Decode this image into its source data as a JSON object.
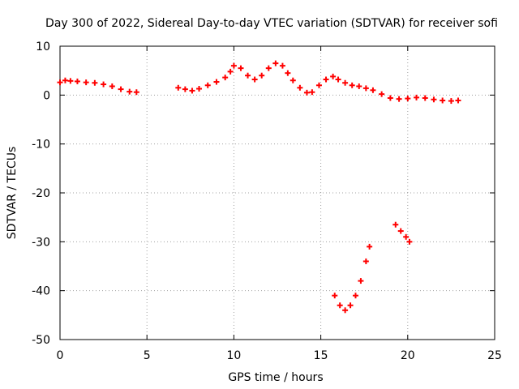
{
  "chart_data": {
    "type": "scatter",
    "title": "Day 300 of 2022, Sidereal Day-to-day VTEC variation (SDTVAR) for receiver sofi",
    "xlabel": "GPS time / hours",
    "ylabel": "SDTVAR / TECUs",
    "xlim": [
      0,
      25
    ],
    "ylim": [
      -50,
      10
    ],
    "xticks": [
      "0",
      "5",
      "10",
      "15",
      "20",
      "25"
    ],
    "yticks": [
      "-50",
      "-40",
      "-30",
      "-20",
      "-10",
      "0",
      "10"
    ],
    "grid": true,
    "marker": "plus",
    "color": "#ff0000",
    "series": [
      {
        "name": "SDTVAR",
        "x": [
          0.0,
          0.3,
          0.6,
          1.0,
          1.5,
          2.0,
          2.5,
          3.0,
          3.5,
          4.0,
          4.4,
          6.8,
          7.2,
          7.6,
          8.0,
          8.5,
          9.0,
          9.5,
          9.8,
          10.0,
          10.4,
          10.8,
          11.2,
          11.6,
          12.0,
          12.4,
          12.8,
          13.1,
          13.4,
          13.8,
          14.2,
          14.5,
          14.9,
          15.3,
          15.7,
          16.0,
          16.4,
          16.8,
          17.2,
          17.6,
          18.0,
          18.5,
          19.0,
          19.5,
          20.0,
          20.5,
          21.0,
          21.5,
          22.0,
          22.5,
          22.9,
          15.8,
          16.1,
          16.4,
          16.7,
          17.0,
          17.3,
          17.6,
          17.8,
          19.3,
          19.6,
          19.9,
          20.1
        ],
        "y": [
          2.6,
          3.0,
          2.9,
          2.8,
          2.6,
          2.5,
          2.2,
          1.8,
          1.2,
          0.7,
          0.6,
          1.5,
          1.2,
          0.9,
          1.3,
          2.0,
          2.7,
          3.6,
          4.8,
          6.0,
          5.5,
          4.0,
          3.2,
          4.0,
          5.5,
          6.5,
          6.0,
          4.5,
          3.0,
          1.5,
          0.5,
          0.6,
          2.0,
          3.2,
          3.8,
          3.2,
          2.5,
          2.0,
          1.8,
          1.4,
          1.0,
          0.2,
          -0.6,
          -0.8,
          -0.7,
          -0.5,
          -0.6,
          -0.9,
          -1.1,
          -1.2,
          -1.1,
          -41.0,
          -43.0,
          -44.0,
          -43.0,
          -41.0,
          -38.0,
          -34.0,
          -31.0,
          -26.5,
          -27.8,
          -29.0,
          -30.0
        ]
      }
    ]
  }
}
